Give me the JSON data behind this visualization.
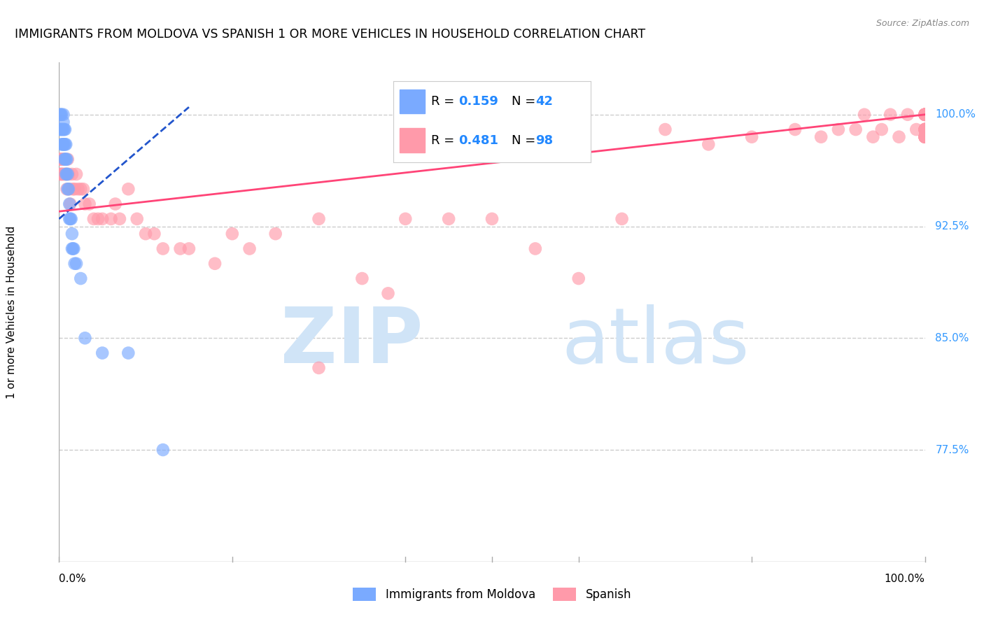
{
  "title": "IMMIGRANTS FROM MOLDOVA VS SPANISH 1 OR MORE VEHICLES IN HOUSEHOLD CORRELATION CHART",
  "source": "Source: ZipAtlas.com",
  "ylabel": "1 or more Vehicles in Household",
  "ytick_labels": [
    "100.0%",
    "92.5%",
    "85.0%",
    "77.5%"
  ],
  "ytick_values": [
    1.0,
    0.925,
    0.85,
    0.775
  ],
  "xlim": [
    0.0,
    1.0
  ],
  "ylim": [
    0.7,
    1.035
  ],
  "blue_scatter_color": "#7aaaff",
  "pink_scatter_color": "#ff9aaa",
  "blue_line_color": "#2255cc",
  "pink_line_color": "#ff4477",
  "watermark_zip": "ZIP",
  "watermark_atlas": "atlas",
  "watermark_color": "#d0e4f7",
  "background_color": "#ffffff",
  "grid_color": "#cccccc",
  "title_fontsize": 12.5,
  "source_fontsize": 9,
  "blue_x": [
    0.001,
    0.001,
    0.002,
    0.002,
    0.003,
    0.003,
    0.003,
    0.004,
    0.004,
    0.005,
    0.005,
    0.005,
    0.005,
    0.006,
    0.006,
    0.006,
    0.007,
    0.007,
    0.007,
    0.008,
    0.008,
    0.008,
    0.009,
    0.009,
    0.01,
    0.01,
    0.011,
    0.012,
    0.012,
    0.013,
    0.014,
    0.015,
    0.015,
    0.016,
    0.017,
    0.018,
    0.02,
    0.025,
    0.03,
    0.05,
    0.08,
    0.12
  ],
  "blue_y": [
    1.0,
    0.99,
    1.0,
    0.99,
    1.0,
    0.99,
    0.98,
    0.99,
    0.98,
    1.0,
    0.995,
    0.99,
    0.98,
    0.99,
    0.98,
    0.97,
    0.99,
    0.98,
    0.97,
    0.98,
    0.97,
    0.96,
    0.97,
    0.96,
    0.96,
    0.95,
    0.95,
    0.94,
    0.93,
    0.93,
    0.93,
    0.92,
    0.91,
    0.91,
    0.91,
    0.9,
    0.9,
    0.89,
    0.85,
    0.84,
    0.84,
    0.775
  ],
  "pink_x": [
    0.001,
    0.001,
    0.002,
    0.002,
    0.003,
    0.003,
    0.004,
    0.005,
    0.005,
    0.006,
    0.007,
    0.008,
    0.009,
    0.01,
    0.011,
    0.012,
    0.013,
    0.015,
    0.016,
    0.018,
    0.02,
    0.022,
    0.025,
    0.028,
    0.03,
    0.035,
    0.04,
    0.045,
    0.05,
    0.06,
    0.065,
    0.07,
    0.08,
    0.09,
    0.1,
    0.11,
    0.12,
    0.14,
    0.15,
    0.18,
    0.2,
    0.22,
    0.25,
    0.3,
    0.35,
    0.38,
    0.4,
    0.45,
    0.5,
    0.55,
    0.6,
    0.65,
    0.7,
    0.75,
    0.8,
    0.85,
    0.88,
    0.9,
    0.92,
    0.93,
    0.94,
    0.95,
    0.96,
    0.97,
    0.98,
    0.99,
    1.0,
    1.0,
    1.0,
    1.0,
    1.0,
    1.0,
    1.0,
    1.0,
    1.0,
    1.0,
    1.0,
    1.0,
    1.0,
    1.0,
    1.0,
    1.0,
    1.0,
    1.0,
    1.0,
    1.0,
    1.0,
    1.0,
    1.0,
    1.0,
    1.0,
    1.0,
    1.0,
    1.0,
    1.0,
    1.0,
    1.0,
    0.3
  ],
  "pink_y": [
    0.96,
    0.97,
    0.97,
    0.96,
    0.97,
    0.96,
    0.96,
    0.97,
    0.96,
    0.97,
    0.96,
    0.96,
    0.95,
    0.97,
    0.96,
    0.95,
    0.94,
    0.96,
    0.95,
    0.95,
    0.96,
    0.95,
    0.95,
    0.95,
    0.94,
    0.94,
    0.93,
    0.93,
    0.93,
    0.93,
    0.94,
    0.93,
    0.95,
    0.93,
    0.92,
    0.92,
    0.91,
    0.91,
    0.91,
    0.9,
    0.92,
    0.91,
    0.92,
    0.93,
    0.89,
    0.88,
    0.93,
    0.93,
    0.93,
    0.91,
    0.89,
    0.93,
    0.99,
    0.98,
    0.985,
    0.99,
    0.985,
    0.99,
    0.99,
    1.0,
    0.985,
    0.99,
    1.0,
    0.985,
    1.0,
    0.99,
    1.0,
    0.99,
    1.0,
    0.985,
    1.0,
    0.99,
    1.0,
    0.985,
    0.99,
    1.0,
    0.99,
    1.0,
    0.985,
    1.0,
    0.99,
    0.985,
    1.0,
    0.99,
    1.0,
    0.985,
    1.0,
    0.99,
    0.985,
    1.0,
    0.99,
    1.0,
    0.985,
    1.0,
    0.99,
    1.0,
    0.985,
    0.83
  ],
  "blue_line_x0": 0.0,
  "blue_line_y0": 0.93,
  "blue_line_x1": 0.15,
  "blue_line_y1": 1.005,
  "pink_line_x0": 0.0,
  "pink_line_y0": 0.935,
  "pink_line_x1": 1.0,
  "pink_line_y1": 1.0
}
